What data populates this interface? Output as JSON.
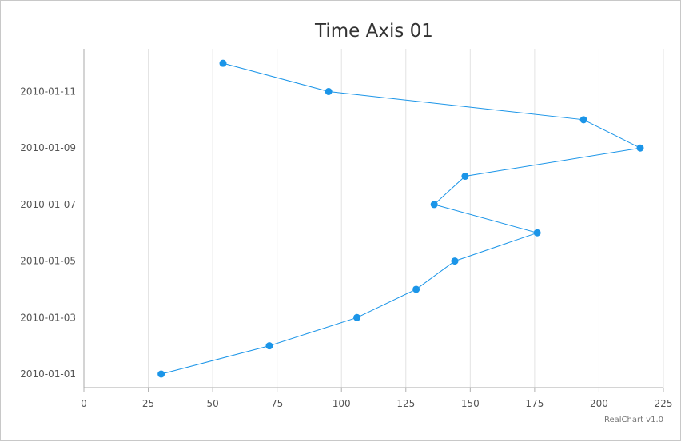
{
  "credit": "RealChart v1.0",
  "chart_data": {
    "type": "line",
    "title": "Time Axis 01",
    "orientation": "inverted",
    "xlabel": "",
    "ylabel": "",
    "value_axis": {
      "range": [
        0,
        225
      ],
      "ticks": [
        0,
        25,
        50,
        75,
        100,
        125,
        150,
        175,
        200,
        225
      ],
      "grid": true
    },
    "time_axis": {
      "range": [
        "2010-01-01",
        "2010-01-12"
      ],
      "tick_labels": [
        "2010-01-01",
        "2010-01-03",
        "2010-01-05",
        "2010-01-07",
        "2010-01-09",
        "2010-01-11"
      ],
      "grid": false
    },
    "legend": "none",
    "series": [
      {
        "color": "#1b95e8",
        "points": [
          {
            "date": "2010-01-01",
            "value": 30
          },
          {
            "date": "2010-01-02",
            "value": 72
          },
          {
            "date": "2010-01-03",
            "value": 106
          },
          {
            "date": "2010-01-04",
            "value": 129
          },
          {
            "date": "2010-01-05",
            "value": 144
          },
          {
            "date": "2010-01-06",
            "value": 176
          },
          {
            "date": "2010-01-07",
            "value": 136
          },
          {
            "date": "2010-01-08",
            "value": 148
          },
          {
            "date": "2010-01-09",
            "value": 216
          },
          {
            "date": "2010-01-10",
            "value": 194
          },
          {
            "date": "2010-01-11",
            "value": 95
          },
          {
            "date": "2010-01-12",
            "value": 54
          }
        ]
      }
    ]
  }
}
